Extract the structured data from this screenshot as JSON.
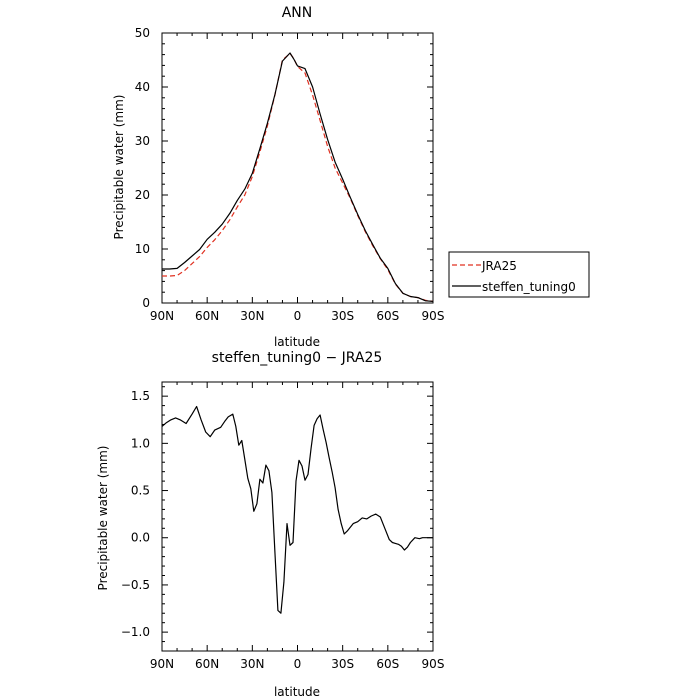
{
  "chart_data": [
    {
      "type": "line",
      "title": "ANN",
      "xlabel": "latitude",
      "ylabel": "Precipitable water (mm)",
      "xlim": [
        90,
        -90
      ],
      "ylim": [
        0,
        50
      ],
      "x_tick_labels": [
        "90N",
        "60N",
        "30N",
        "0",
        "30S",
        "60S",
        "90S"
      ],
      "y_tick_labels": [
        "0",
        "10",
        "20",
        "30",
        "40",
        "50"
      ],
      "legend_position": "right",
      "series": [
        {
          "name": "JRA25",
          "color": "#e03020",
          "style": "dashed",
          "x": [
            90,
            85,
            80,
            75,
            70,
            65,
            60,
            55,
            50,
            45,
            40,
            35,
            30,
            25,
            20,
            15,
            10,
            5,
            2.5,
            0,
            -5,
            -10,
            -15,
            -20,
            -25,
            -30,
            -35,
            -40,
            -45,
            -50,
            -55,
            -60,
            -65,
            -70,
            -75,
            -80,
            -85,
            -90
          ],
          "y": [
            5.0,
            5.0,
            5.1,
            6.0,
            7.3,
            8.6,
            10.3,
            11.7,
            13.4,
            15.4,
            17.8,
            20.0,
            23.4,
            28.0,
            32.8,
            38.5,
            45.0,
            46.2,
            45.3,
            43.8,
            42.6,
            38.5,
            33.8,
            29.0,
            25.0,
            22.2,
            19.4,
            16.2,
            13.2,
            10.6,
            8.2,
            6.2,
            3.5,
            1.8,
            1.2,
            1.0,
            0.5,
            0.3
          ]
        },
        {
          "name": "steffen_tuning0",
          "color": "#000000",
          "style": "solid",
          "x": [
            90,
            85,
            80,
            75,
            70,
            65,
            60,
            55,
            50,
            45,
            40,
            35,
            30,
            25,
            20,
            15,
            10,
            5,
            2.5,
            0,
            -5,
            -10,
            -15,
            -20,
            -25,
            -30,
            -35,
            -40,
            -45,
            -50,
            -55,
            -60,
            -65,
            -70,
            -75,
            -80,
            -85,
            -90
          ],
          "y": [
            6.3,
            6.3,
            6.4,
            7.5,
            8.7,
            9.9,
            11.8,
            13.1,
            14.6,
            16.6,
            19.0,
            21.1,
            24.0,
            28.6,
            33.3,
            38.6,
            44.8,
            46.3,
            45.2,
            43.9,
            43.4,
            40.0,
            35.0,
            30.3,
            26.1,
            22.9,
            19.6,
            16.4,
            13.4,
            10.8,
            8.3,
            6.4,
            3.6,
            1.8,
            1.2,
            1.0,
            0.4,
            0.3
          ]
        }
      ]
    },
    {
      "type": "line",
      "title": "steffen_tuning0 − JRA25",
      "xlabel": "latitude",
      "ylabel": "Precipitable water (mm)",
      "xlim": [
        90,
        -90
      ],
      "ylim": [
        -1.2,
        1.65
      ],
      "x_tick_labels": [
        "90N",
        "60N",
        "30N",
        "0",
        "30S",
        "60S",
        "90S"
      ],
      "y_tick_labels": [
        "−1.0",
        "−0.5",
        "0.0",
        "0.5",
        "1.0",
        "1.5"
      ],
      "series": [
        {
          "name": "",
          "color": "#000000",
          "style": "solid",
          "x": [
            90,
            87,
            84,
            81,
            78,
            74,
            70,
            67,
            64,
            61,
            58,
            55,
            51,
            48,
            46,
            43,
            41,
            39,
            37,
            35,
            33,
            31,
            29,
            27,
            25,
            23,
            21,
            19,
            17,
            15,
            13,
            11,
            9,
            7,
            5,
            3,
            1,
            -1,
            -3,
            -5,
            -7,
            -9,
            -11,
            -13,
            -15,
            -17,
            -19,
            -21,
            -23,
            -25,
            -27,
            -29,
            -31,
            -33,
            -35,
            -37,
            -40,
            -43,
            -46,
            -49,
            -52,
            -55,
            -58,
            -61,
            -63,
            -65,
            -67,
            -69,
            -71,
            -73,
            -75,
            -78,
            -81,
            -83,
            -85,
            -87,
            -90
          ],
          "y": [
            1.18,
            1.22,
            1.25,
            1.27,
            1.25,
            1.21,
            1.31,
            1.39,
            1.25,
            1.12,
            1.07,
            1.14,
            1.17,
            1.24,
            1.28,
            1.31,
            1.18,
            0.98,
            1.03,
            0.83,
            0.63,
            0.52,
            0.28,
            0.36,
            0.62,
            0.58,
            0.77,
            0.71,
            0.48,
            -0.15,
            -0.77,
            -0.8,
            -0.47,
            0.15,
            -0.08,
            -0.05,
            0.6,
            0.82,
            0.76,
            0.61,
            0.67,
            0.95,
            1.19,
            1.26,
            1.3,
            1.15,
            1.01,
            0.85,
            0.7,
            0.53,
            0.3,
            0.15,
            0.04,
            0.07,
            0.11,
            0.15,
            0.17,
            0.21,
            0.2,
            0.23,
            0.25,
            0.22,
            0.1,
            -0.02,
            -0.05,
            -0.06,
            -0.07,
            -0.09,
            -0.13,
            -0.1,
            -0.05,
            0.0,
            -0.01,
            0.0,
            0.0,
            0.0,
            0.0
          ]
        }
      ]
    }
  ]
}
